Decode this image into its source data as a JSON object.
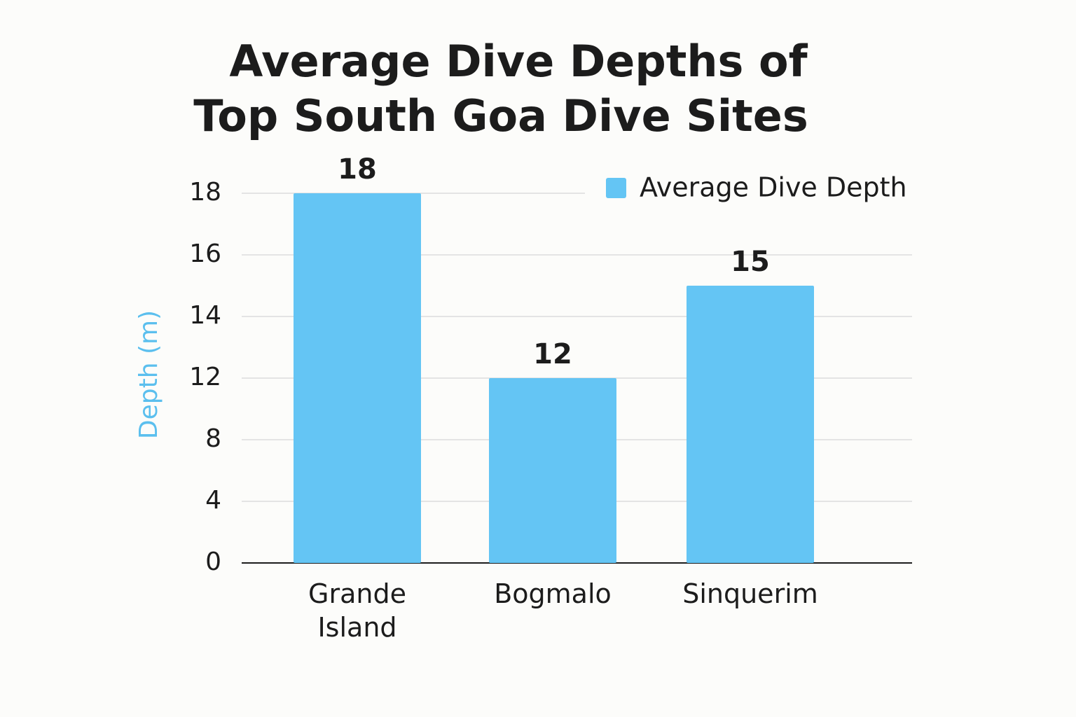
{
  "chart_data": {
    "type": "bar",
    "title": [
      "Average Dive Depths of",
      "Top South Goa Dive Sites"
    ],
    "y_label": "Depth (m)",
    "categories": [
      "Grande Island",
      "Bogmalo",
      "Sinquerim"
    ],
    "series": [
      {
        "name": "Average Dive Depth",
        "color": "#64c5f4",
        "values": [
          18,
          12,
          15
        ]
      }
    ],
    "ylim": [
      0,
      18
    ],
    "yticks": [
      0,
      4,
      8,
      12,
      14,
      16,
      18
    ],
    "grid": true,
    "legend": "top-right"
  }
}
